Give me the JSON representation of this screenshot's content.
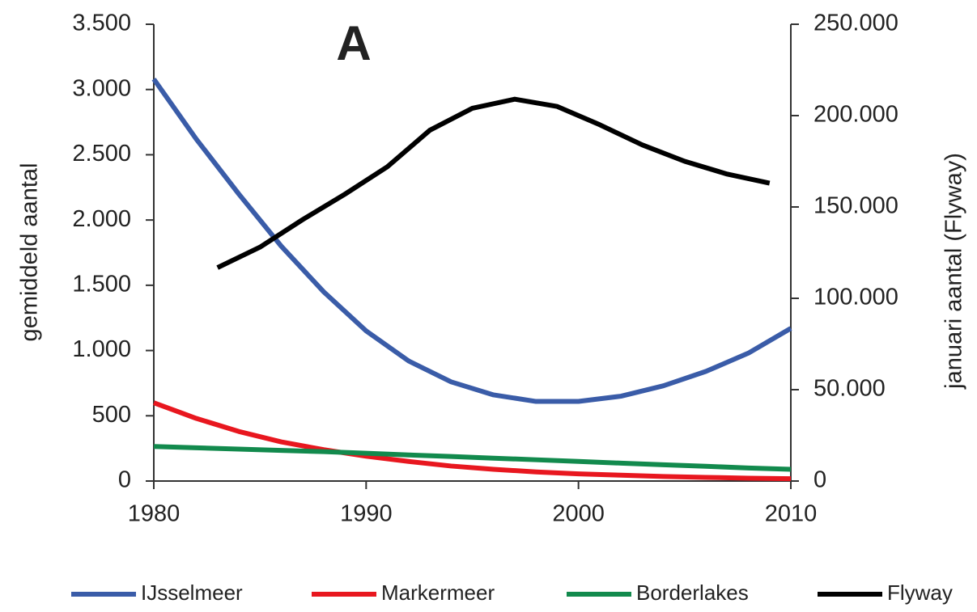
{
  "chart_data": {
    "type": "line",
    "title": "A",
    "y_label": "gemiddeld aantal",
    "y2_label": "januari aantal (Flyway)",
    "x": [
      1980,
      1982,
      1984,
      1986,
      1988,
      1990,
      1992,
      1994,
      1996,
      1998,
      2000,
      2002,
      2004,
      2006,
      2008,
      2010
    ],
    "xlim": [
      1980,
      2010
    ],
    "xticks": [
      1980,
      1990,
      2000,
      2010
    ],
    "ylim": [
      0,
      3500
    ],
    "yticks": [
      {
        "value": 0,
        "label": "0"
      },
      {
        "value": 500,
        "label": "500"
      },
      {
        "value": 1000,
        "label": "1.000"
      },
      {
        "value": 1500,
        "label": "1.500"
      },
      {
        "value": 2000,
        "label": "2.000"
      },
      {
        "value": 2500,
        "label": "2.500"
      },
      {
        "value": 3000,
        "label": "3.000"
      },
      {
        "value": 3500,
        "label": "3.500"
      }
    ],
    "y2lim": [
      0,
      250000
    ],
    "y2ticks": [
      {
        "value": 0,
        "label": "0"
      },
      {
        "value": 50000,
        "label": "50.000"
      },
      {
        "value": 100000,
        "label": "100.000"
      },
      {
        "value": 150000,
        "label": "150.000"
      },
      {
        "value": 200000,
        "label": "200.000"
      },
      {
        "value": 250000,
        "label": "250.000"
      }
    ],
    "series": [
      {
        "name": "IJsselmeer",
        "color": "#3a5ca8",
        "values": [
          3080,
          2620,
          2200,
          1800,
          1450,
          1150,
          920,
          760,
          660,
          610,
          610,
          650,
          730,
          840,
          980,
          1170
        ]
      },
      {
        "name": "Markermeer",
        "color": "#e8171f",
        "values": [
          600,
          480,
          380,
          300,
          240,
          190,
          150,
          115,
          90,
          70,
          55,
          45,
          35,
          28,
          22,
          18
        ]
      },
      {
        "name": "Borderlakes",
        "color": "#128a4d",
        "values": [
          265,
          255,
          245,
          235,
          225,
          213,
          200,
          188,
          175,
          163,
          150,
          137,
          125,
          113,
          100,
          90
        ]
      },
      {
        "name": "Flyway",
        "color": "#000000",
        "axis": "y2",
        "x": [
          1983,
          1985,
          1987,
          1989,
          1991,
          1993,
          1995,
          1997,
          1999,
          2001,
          2003,
          2005,
          2007,
          2009
        ],
        "values": [
          116800,
          128000,
          143000,
          157000,
          172000,
          192000,
          204000,
          209000,
          205000,
          195000,
          184000,
          175000,
          168000,
          163000
        ]
      }
    ]
  }
}
